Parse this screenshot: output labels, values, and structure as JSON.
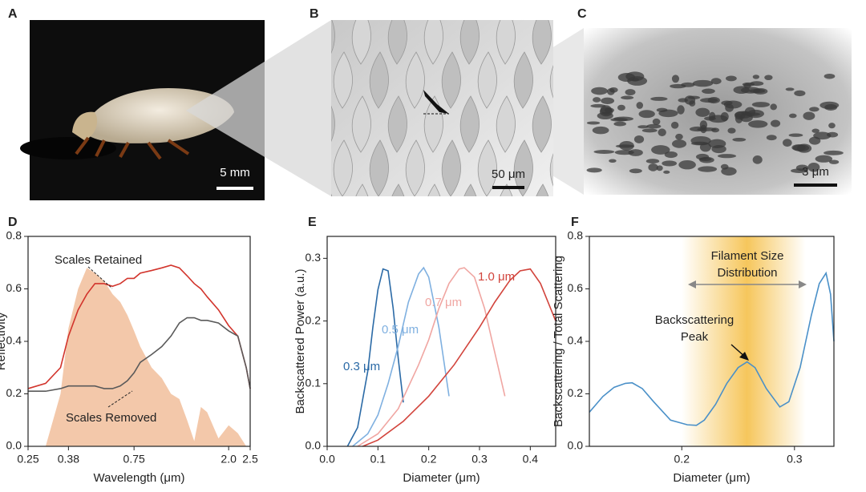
{
  "images": [
    {
      "panel": "A",
      "scale_bar": "5 mm"
    },
    {
      "panel": "B",
      "scale_bar": "50 μm"
    },
    {
      "panel": "C",
      "scale_bar": "3 μm"
    }
  ],
  "chart_data": [
    {
      "type": "line",
      "panel": "D",
      "x_label": "Wavelength (μm)",
      "y_label": "Reflectivity",
      "xscale": "log",
      "xlim": [
        0.25,
        2.5
      ],
      "xticks": [
        0.25,
        0.38,
        0.75,
        {
          "value": 2.0,
          "label": "2.0"
        },
        2.5
      ],
      "ylim": [
        0,
        0.8
      ],
      "yticks": [
        {
          "value": 0,
          "label": "0.0"
        },
        0.2,
        0.4,
        0.6,
        0.8
      ],
      "x": [
        0.25,
        0.3,
        0.35,
        0.38,
        0.42,
        0.46,
        0.5,
        0.55,
        0.6,
        0.65,
        0.7,
        0.75,
        0.8,
        0.9,
        1.0,
        1.1,
        1.2,
        1.3,
        1.4,
        1.5,
        1.6,
        1.8,
        2.0,
        2.2,
        2.4,
        2.5
      ],
      "series": [
        {
          "color": "#f3c8aa",
          "area": true,
          "values": [
            0,
            0,
            0.2,
            0.45,
            0.6,
            0.68,
            0.66,
            0.63,
            0.58,
            0.55,
            0.5,
            0.44,
            0.38,
            0.3,
            0.26,
            0.2,
            0.18,
            0.1,
            0.02,
            0.15,
            0.13,
            0.03,
            0.08,
            0.05,
            0,
            0
          ]
        },
        {
          "name": "Scales Retained",
          "color": "#d2342c",
          "values": [
            0.22,
            0.24,
            0.3,
            0.42,
            0.52,
            0.58,
            0.62,
            0.62,
            0.61,
            0.62,
            0.64,
            0.64,
            0.66,
            0.67,
            0.68,
            0.69,
            0.68,
            0.65,
            0.62,
            0.6,
            0.57,
            0.52,
            0.46,
            0.42,
            0.3,
            0.22
          ]
        },
        {
          "name": "Scales Removed",
          "color": "#5a5a5a",
          "values": [
            0.21,
            0.21,
            0.22,
            0.23,
            0.23,
            0.23,
            0.23,
            0.22,
            0.22,
            0.23,
            0.25,
            0.28,
            0.32,
            0.35,
            0.38,
            0.42,
            0.47,
            0.49,
            0.49,
            0.48,
            0.48,
            0.47,
            0.44,
            0.42,
            0.3,
            0.22
          ]
        }
      ]
    },
    {
      "type": "line",
      "panel": "E",
      "x_label": "Diameter (μm)",
      "y_label": "Backscattered Power (a.u.)",
      "xlim": [
        0,
        0.45
      ],
      "xticks": [
        {
          "value": 0,
          "label": "0.0"
        },
        0.1,
        0.2,
        0.3,
        0.4
      ],
      "ylim": [
        0,
        0.335
      ],
      "yticks": [
        {
          "value": 0,
          "label": "0.0"
        },
        0.1,
        0.2,
        0.3
      ],
      "series": [
        {
          "name": "0.3 μm",
          "color": "#2b6aa6",
          "x": [
            0.04,
            0.06,
            0.08,
            0.09,
            0.1,
            0.11,
            0.12,
            0.13,
            0.14,
            0.15
          ],
          "values": [
            0,
            0.03,
            0.12,
            0.19,
            0.25,
            0.283,
            0.28,
            0.22,
            0.14,
            0.07
          ]
        },
        {
          "name": "0.5 μm",
          "color": "#7fb0e0",
          "x": [
            0.05,
            0.08,
            0.1,
            0.12,
            0.14,
            0.16,
            0.18,
            0.19,
            0.2,
            0.22,
            0.24
          ],
          "values": [
            0,
            0.02,
            0.05,
            0.1,
            0.16,
            0.23,
            0.275,
            0.285,
            0.27,
            0.19,
            0.08
          ]
        },
        {
          "name": "0.7 μm",
          "color": "#f0a6a2",
          "x": [
            0.06,
            0.1,
            0.14,
            0.18,
            0.2,
            0.22,
            0.24,
            0.26,
            0.27,
            0.29,
            0.31,
            0.33,
            0.35
          ],
          "values": [
            0,
            0.02,
            0.06,
            0.13,
            0.17,
            0.22,
            0.26,
            0.283,
            0.285,
            0.27,
            0.22,
            0.15,
            0.08
          ]
        },
        {
          "name": "1.0 μm",
          "color": "#d2443c",
          "x": [
            0.07,
            0.1,
            0.15,
            0.2,
            0.25,
            0.3,
            0.33,
            0.36,
            0.38,
            0.4,
            0.42,
            0.45
          ],
          "values": [
            0,
            0.01,
            0.04,
            0.08,
            0.13,
            0.19,
            0.23,
            0.265,
            0.28,
            0.283,
            0.26,
            0.2
          ]
        }
      ]
    },
    {
      "type": "line",
      "panel": "F",
      "x_label": "Diameter (μm)",
      "y_label": "Backscattering / Total Scattering",
      "xlim": [
        0.118,
        0.335
      ],
      "xticks": [
        0.2,
        0.3
      ],
      "ylim": [
        0,
        0.8
      ],
      "yticks": [
        {
          "value": 0,
          "label": "0.0"
        },
        0.2,
        0.4,
        0.6,
        0.8
      ],
      "band": {
        "from": 0.2,
        "peak": 0.258,
        "to": 0.31,
        "color": "#f5c04a"
      },
      "annotations": [
        {
          "lines": [
            "Filament Size",
            "Distribution"
          ]
        },
        {
          "lines": [
            "Backscattering",
            "Peak"
          ]
        }
      ],
      "series": [
        {
          "color": "#4a90c8",
          "x": [
            0.118,
            0.13,
            0.14,
            0.15,
            0.156,
            0.165,
            0.175,
            0.19,
            0.205,
            0.213,
            0.22,
            0.23,
            0.24,
            0.25,
            0.258,
            0.265,
            0.275,
            0.287,
            0.295,
            0.305,
            0.315,
            0.322,
            0.328,
            0.332,
            0.335
          ],
          "values": [
            0.13,
            0.19,
            0.225,
            0.24,
            0.242,
            0.22,
            0.17,
            0.1,
            0.082,
            0.08,
            0.1,
            0.16,
            0.24,
            0.3,
            0.322,
            0.3,
            0.22,
            0.15,
            0.17,
            0.3,
            0.5,
            0.62,
            0.66,
            0.58,
            0.4
          ]
        }
      ]
    }
  ]
}
